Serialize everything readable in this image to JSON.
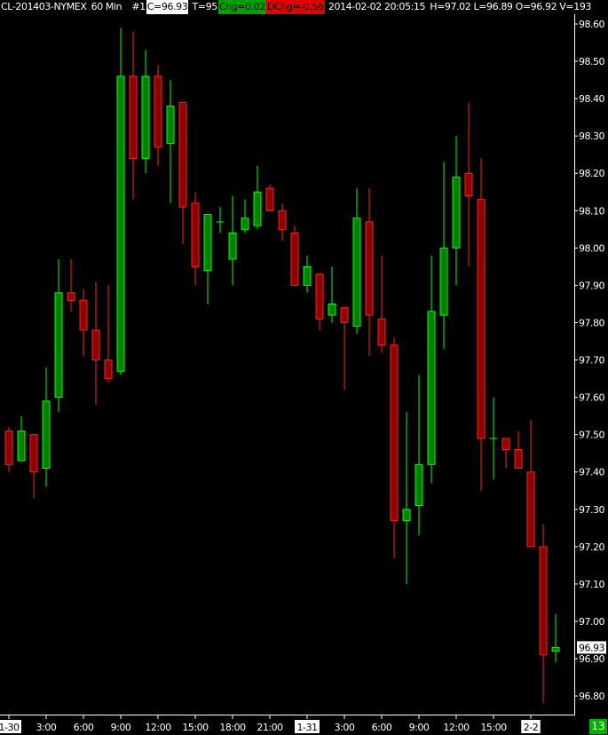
{
  "header": {
    "symbol": "CL-201403-NYMEX",
    "interval": "60 Min",
    "chart_no": "#1",
    "close": "C=96.93",
    "ticks": "T=95",
    "chg": "Chg=0.02",
    "dchg": "DChg=-0.56",
    "datetime": "2014-02-02 20:05:15",
    "hlov": "H=97.02 L=96.89 O=96.92 V=193"
  },
  "corner_badge": "13",
  "colors": {
    "background": "#000000",
    "up_fill": "#008000",
    "up_edge": "#00ff00",
    "down_fill": "#8b0000",
    "down_edge": "#ff2020",
    "axis": "#ffffff"
  },
  "chart_data": {
    "type": "candlestick",
    "ylim": [
      96.77,
      98.62
    ],
    "y_ticks": [
      "98.60",
      "98.50",
      "98.40",
      "98.30",
      "98.20",
      "98.10",
      "98.00",
      "97.90",
      "97.80",
      "97.70",
      "97.60",
      "97.50",
      "97.40",
      "97.30",
      "97.20",
      "97.10",
      "97.00",
      "96.90",
      "96.80"
    ],
    "last_price_label": "96.93",
    "x_labels": [
      {
        "label": "1-30",
        "bar": 0,
        "date": true
      },
      {
        "label": "3:00",
        "bar": 3
      },
      {
        "label": "6:00",
        "bar": 6
      },
      {
        "label": "9:00",
        "bar": 9
      },
      {
        "label": "12:00",
        "bar": 12
      },
      {
        "label": "15:00",
        "bar": 15
      },
      {
        "label": "18:00",
        "bar": 18
      },
      {
        "label": "21:00",
        "bar": 21
      },
      {
        "label": "1-31",
        "bar": 24,
        "date": true
      },
      {
        "label": "3:00",
        "bar": 27
      },
      {
        "label": "6:00",
        "bar": 30
      },
      {
        "label": "9:00",
        "bar": 33
      },
      {
        "label": "12:00",
        "bar": 36
      },
      {
        "label": "15:00",
        "bar": 39
      },
      {
        "label": "2-2",
        "bar": 42,
        "date": true
      }
    ],
    "ohlc": [
      [
        97.51,
        97.52,
        97.4,
        97.42
      ],
      [
        97.43,
        97.55,
        97.43,
        97.51
      ],
      [
        97.5,
        97.5,
        97.33,
        97.4
      ],
      [
        97.41,
        97.68,
        97.36,
        97.59
      ],
      [
        97.6,
        97.97,
        97.56,
        97.88
      ],
      [
        97.88,
        97.97,
        97.83,
        97.86
      ],
      [
        97.86,
        97.89,
        97.71,
        97.78
      ],
      [
        97.78,
        97.91,
        97.58,
        97.7
      ],
      [
        97.7,
        97.9,
        97.64,
        97.65
      ],
      [
        97.67,
        98.59,
        97.66,
        98.46
      ],
      [
        98.46,
        98.58,
        98.13,
        98.24
      ],
      [
        98.24,
        98.53,
        98.2,
        98.46
      ],
      [
        98.46,
        98.49,
        98.22,
        98.27
      ],
      [
        98.28,
        98.45,
        98.12,
        98.38
      ],
      [
        98.39,
        98.39,
        98.01,
        98.11
      ],
      [
        98.12,
        98.15,
        97.9,
        97.95
      ],
      [
        97.94,
        98.09,
        97.85,
        98.09
      ],
      [
        98.07,
        98.11,
        98.04,
        98.07
      ],
      [
        97.97,
        98.14,
        97.9,
        98.04
      ],
      [
        98.05,
        98.13,
        98.04,
        98.08
      ],
      [
        98.06,
        98.22,
        98.05,
        98.15
      ],
      [
        98.16,
        98.17,
        98.1,
        98.1
      ],
      [
        98.1,
        98.12,
        98.02,
        98.05
      ],
      [
        98.04,
        98.06,
        97.9,
        97.9
      ],
      [
        97.9,
        97.98,
        97.88,
        97.95
      ],
      [
        97.93,
        97.93,
        97.78,
        97.81
      ],
      [
        97.82,
        97.95,
        97.8,
        97.85
      ],
      [
        97.84,
        97.84,
        97.62,
        97.8
      ],
      [
        97.79,
        98.16,
        97.77,
        98.08
      ],
      [
        98.07,
        98.16,
        97.71,
        97.82
      ],
      [
        97.81,
        97.98,
        97.72,
        97.74
      ],
      [
        97.74,
        97.76,
        97.17,
        97.27
      ],
      [
        97.27,
        97.56,
        97.1,
        97.3
      ],
      [
        97.31,
        97.66,
        97.23,
        97.42
      ],
      [
        97.42,
        97.98,
        97.37,
        97.83
      ],
      [
        97.82,
        98.23,
        97.73,
        98.0
      ],
      [
        98.0,
        98.3,
        97.9,
        98.19
      ],
      [
        98.2,
        98.39,
        97.95,
        98.14
      ],
      [
        98.13,
        98.24,
        97.35,
        97.49
      ],
      [
        97.49,
        97.6,
        97.38,
        97.49
      ],
      [
        97.49,
        97.49,
        97.41,
        97.46
      ],
      [
        97.46,
        97.51,
        97.41,
        97.41
      ],
      [
        97.4,
        97.54,
        97.2,
        97.2
      ],
      [
        97.2,
        97.26,
        96.78,
        96.91
      ],
      [
        96.92,
        97.02,
        96.89,
        96.93
      ]
    ]
  }
}
